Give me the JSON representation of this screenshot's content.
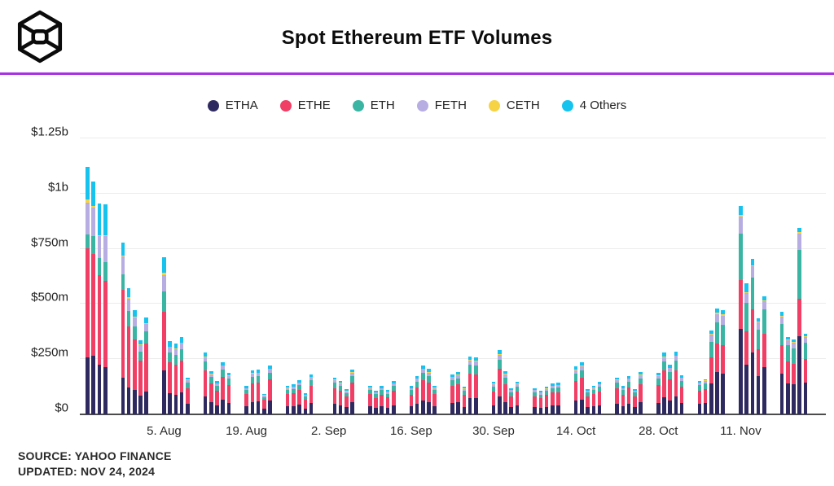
{
  "header": {
    "title": "Spot Ethereum ETF Volumes",
    "divider_color": "#a832e3",
    "logo_color": "#0b0b0b"
  },
  "footer": {
    "source": "SOURCE: YAHOO FINANCE",
    "updated": "UPDATED: NOV 24, 2024"
  },
  "legend": [
    {
      "label": "ETHA",
      "color": "#2e2a60"
    },
    {
      "label": "ETHE",
      "color": "#f03e64"
    },
    {
      "label": "ETH",
      "color": "#3ab5a4"
    },
    {
      "label": "FETH",
      "color": "#b7ade3"
    },
    {
      "label": "CETH",
      "color": "#f6d344"
    },
    {
      "label": "4 Others",
      "color": "#16c3ef"
    }
  ],
  "chart_data": {
    "type": "bar",
    "stacked": true,
    "title": "Spot Ethereum ETF Volumes",
    "unit": "millions USD",
    "ylim": [
      0,
      1250
    ],
    "grid": true,
    "legend_position": "top",
    "y_tick_labels": [
      "$0",
      "$250m",
      "$500m",
      "$750m",
      "$1b",
      "$1.25b"
    ],
    "y_tick_values": [
      0,
      250,
      500,
      750,
      1000,
      1250
    ],
    "x_tick_labels": [
      {
        "label": "5. Aug",
        "date": "2024-08-05"
      },
      {
        "label": "19. Aug",
        "date": "2024-08-19"
      },
      {
        "label": "2. Sep",
        "date": "2024-09-02"
      },
      {
        "label": "16. Sep",
        "date": "2024-09-16"
      },
      {
        "label": "30. Sep",
        "date": "2024-09-30"
      },
      {
        "label": "14. Oct",
        "date": "2024-10-14"
      },
      {
        "label": "28. Oct",
        "date": "2024-10-28"
      },
      {
        "label": "11. Nov",
        "date": "2024-11-11"
      }
    ],
    "categories": [
      "2024-07-23",
      "2024-07-24",
      "2024-07-25",
      "2024-07-26",
      "2024-07-29",
      "2024-07-30",
      "2024-07-31",
      "2024-08-01",
      "2024-08-02",
      "2024-08-05",
      "2024-08-06",
      "2024-08-07",
      "2024-08-08",
      "2024-08-09",
      "2024-08-12",
      "2024-08-13",
      "2024-08-14",
      "2024-08-15",
      "2024-08-16",
      "2024-08-19",
      "2024-08-20",
      "2024-08-21",
      "2024-08-22",
      "2024-08-23",
      "2024-08-26",
      "2024-08-27",
      "2024-08-28",
      "2024-08-29",
      "2024-08-30",
      "2024-09-03",
      "2024-09-04",
      "2024-09-05",
      "2024-09-06",
      "2024-09-09",
      "2024-09-10",
      "2024-09-11",
      "2024-09-12",
      "2024-09-13",
      "2024-09-16",
      "2024-09-17",
      "2024-09-18",
      "2024-09-19",
      "2024-09-20",
      "2024-09-23",
      "2024-09-24",
      "2024-09-25",
      "2024-09-26",
      "2024-09-27",
      "2024-09-30",
      "2024-10-01",
      "2024-10-02",
      "2024-10-03",
      "2024-10-04",
      "2024-10-07",
      "2024-10-08",
      "2024-10-09",
      "2024-10-10",
      "2024-10-11",
      "2024-10-14",
      "2024-10-15",
      "2024-10-16",
      "2024-10-17",
      "2024-10-18",
      "2024-10-21",
      "2024-10-22",
      "2024-10-23",
      "2024-10-24",
      "2024-10-25",
      "2024-10-28",
      "2024-10-29",
      "2024-10-30",
      "2024-10-31",
      "2024-11-01",
      "2024-11-04",
      "2024-11-05",
      "2024-11-06",
      "2024-11-07",
      "2024-11-08",
      "2024-11-11",
      "2024-11-12",
      "2024-11-13",
      "2024-11-14",
      "2024-11-15",
      "2024-11-18",
      "2024-11-19",
      "2024-11-20",
      "2024-11-21",
      "2024-11-22"
    ],
    "series": [
      {
        "name": "ETHA",
        "values": [
          259,
          266,
          226,
          215,
          165,
          120,
          110,
          85,
          105,
          200,
          95,
          90,
          100,
          48,
          80,
          55,
          42,
          68,
          53,
          36,
          56,
          58,
          26,
          62,
          36,
          38,
          43,
          27,
          51,
          47,
          42,
          32,
          57,
          36,
          30,
          36,
          31,
          42,
          36,
          49,
          62,
          57,
          36,
          51,
          54,
          35,
          74,
          72,
          41,
          82,
          55,
          33,
          41,
          33,
          30,
          35,
          39,
          40,
          61,
          66,
          32,
          36,
          41,
          47,
          36,
          49,
          32,
          54,
          53,
          79,
          63,
          80,
          50,
          48,
          50,
          140,
          190,
          185,
          388,
          225,
          280,
          175,
          215,
          185,
          140,
          135,
          355,
          145
        ]
      },
      {
        "name": "ETHE",
        "values": [
          492,
          459,
          403,
          388,
          400,
          280,
          230,
          160,
          215,
          266,
          140,
          135,
          145,
          70,
          120,
          85,
          65,
          100,
          80,
          55,
          85,
          86,
          39,
          95,
          55,
          57,
          66,
          41,
          77,
          71,
          65,
          48,
          87,
          55,
          45,
          54,
          47,
          64,
          54,
          74,
          94,
          87,
          55,
          77,
          81,
          53,
          111,
          110,
          63,
          123,
          83,
          50,
          63,
          50,
          45,
          53,
          59,
          61,
          92,
          100,
          49,
          55,
          62,
          71,
          54,
          74,
          49,
          81,
          80,
          119,
          96,
          121,
          76,
          60,
          64,
          120,
          130,
          130,
          222,
          150,
          195,
          120,
          150,
          130,
          100,
          95,
          167,
          105
        ]
      },
      {
        "name": "ETH",
        "values": [
          63,
          81,
          78,
          85,
          70,
          70,
          60,
          40,
          55,
          92,
          45,
          45,
          50,
          25,
          40,
          28,
          22,
          35,
          28,
          19,
          30,
          30,
          14,
          33,
          19,
          20,
          23,
          14,
          27,
          25,
          23,
          17,
          30,
          19,
          16,
          19,
          16,
          22,
          19,
          26,
          33,
          30,
          19,
          27,
          29,
          19,
          39,
          38,
          22,
          44,
          29,
          17,
          22,
          17,
          15,
          19,
          21,
          21,
          32,
          35,
          17,
          19,
          22,
          25,
          19,
          26,
          17,
          29,
          28,
          42,
          34,
          42,
          26,
          25,
          27,
          70,
          95,
          92,
          207,
          130,
          145,
          90,
          110,
          95,
          72,
          70,
          222,
          75
        ]
      },
      {
        "name": "FETH",
        "values": [
          144,
          129,
          100,
          118,
          80,
          55,
          40,
          30,
          35,
          74,
          25,
          25,
          28,
          12,
          20,
          14,
          11,
          17,
          14,
          9,
          14,
          14,
          7,
          16,
          10,
          10,
          11,
          7,
          13,
          12,
          11,
          8,
          15,
          10,
          8,
          9,
          8,
          11,
          9,
          13,
          16,
          15,
          10,
          13,
          14,
          9,
          19,
          19,
          11,
          21,
          14,
          9,
          11,
          9,
          8,
          9,
          10,
          10,
          16,
          17,
          8,
          10,
          11,
          12,
          9,
          13,
          8,
          14,
          14,
          20,
          16,
          21,
          13,
          10,
          11,
          30,
          40,
          40,
          81,
          45,
          50,
          30,
          38,
          33,
          25,
          25,
          74,
          26
        ]
      },
      {
        "name": "CETH",
        "values": [
          15,
          8,
          5,
          5,
          5,
          5,
          3,
          2,
          3,
          10,
          3,
          3,
          3,
          2,
          3,
          2,
          2,
          2,
          2,
          1,
          2,
          2,
          1,
          2,
          1,
          1,
          2,
          1,
          2,
          2,
          2,
          1,
          2,
          1,
          1,
          1,
          1,
          2,
          1,
          2,
          2,
          2,
          1,
          2,
          2,
          1,
          3,
          3,
          2,
          3,
          2,
          1,
          2,
          1,
          1,
          1,
          2,
          2,
          2,
          3,
          1,
          1,
          2,
          2,
          1,
          2,
          1,
          2,
          2,
          3,
          3,
          3,
          2,
          2,
          2,
          5,
          6,
          6,
          5,
          4,
          5,
          4,
          5,
          5,
          4,
          4,
          8,
          4
        ]
      },
      {
        "name": "4 Others",
        "values": [
          148,
          111,
          143,
          140,
          57,
          40,
          30,
          20,
          27,
          70,
          25,
          23,
          25,
          9,
          18,
          12,
          10,
          15,
          12,
          9,
          13,
          14,
          6,
          14,
          9,
          9,
          10,
          6,
          11,
          10,
          9,
          8,
          13,
          9,
          6,
          9,
          7,
          9,
          9,
          11,
          15,
          14,
          9,
          11,
          12,
          9,
          17,
          17,
          9,
          19,
          13,
          8,
          9,
          8,
          7,
          9,
          9,
          9,
          14,
          15,
          8,
          9,
          9,
          10,
          9,
          10,
          8,
          12,
          12,
          18,
          14,
          18,
          11,
          5,
          5,
          16,
          20,
          20,
          40,
          38,
          28,
          17,
          18,
          18,
          11,
          11,
          20,
          11
        ]
      }
    ]
  }
}
